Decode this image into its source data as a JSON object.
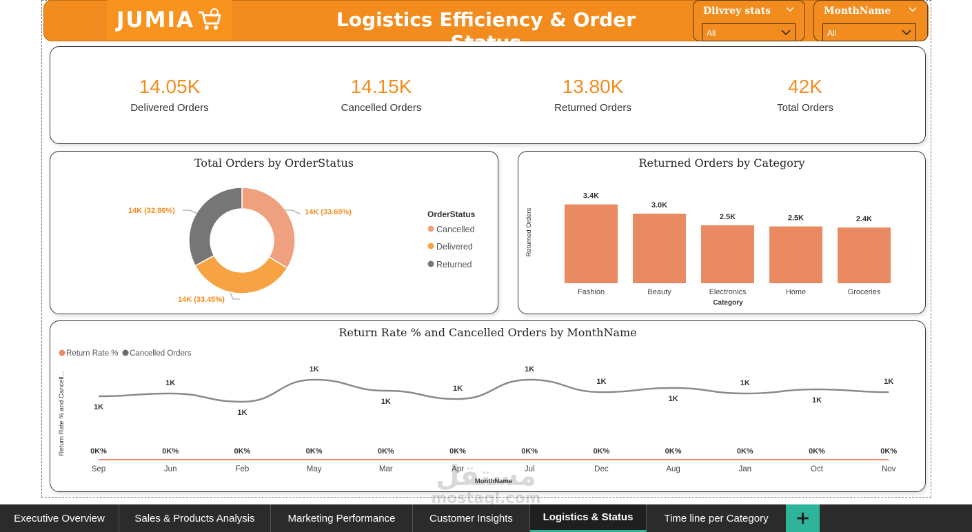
{
  "header": {
    "logo_text": "JUMIA",
    "title": "Logistics Efficiency & Order Status"
  },
  "slicers": [
    {
      "title": "Dlivrey stats",
      "value": "All"
    },
    {
      "title": "MonthName",
      "value": "All"
    }
  ],
  "kpis": [
    {
      "value": "14.05K",
      "label": "Delivered Orders"
    },
    {
      "value": "14.15K",
      "label": "Cancelled Orders"
    },
    {
      "value": "13.80K",
      "label": "Returned Orders"
    },
    {
      "value": "42K",
      "label": "Total Orders"
    }
  ],
  "colors": {
    "brand": "#f28c1e",
    "cancelled": "#efa07e",
    "delivered": "#f7a343",
    "returned": "#767676",
    "bar": "#ea8a62",
    "line_gray": "#8a8a8a",
    "line_orange": "#ea8a62",
    "tab_accent": "#2db49a"
  },
  "donut": {
    "title": "Total Orders by OrderStatus",
    "legend_title": "OrderStatus",
    "labels": {
      "cancelled": "14K (33.69%)",
      "delivered": "14K (33.45%)",
      "returned": "14K (32.86%)"
    }
  },
  "bar_chart": {
    "title": "Returned Orders by Category",
    "xlabel": "Category",
    "ylabel": "Returned Orders"
  },
  "line_chart": {
    "title": "Return Rate % and Cancelled Orders by MonthName",
    "xlabel": "MonthName",
    "ylabel": "Return Rate % and Cancell...",
    "legend": [
      "Return Rate %",
      "Cancelled Orders"
    ]
  },
  "chart_data": [
    {
      "type": "pie",
      "title": "Total Orders by OrderStatus",
      "categories": [
        "Cancelled",
        "Delivered",
        "Returned"
      ],
      "values": [
        33.69,
        33.45,
        32.86
      ],
      "data_labels": [
        "14K (33.69%)",
        "14K (33.45%)",
        "14K (32.86%)"
      ],
      "legend_title": "OrderStatus"
    },
    {
      "type": "bar",
      "title": "Returned Orders by Category",
      "categories": [
        "Fashion",
        "Beauty",
        "Electronics",
        "Home",
        "Groceries"
      ],
      "values": [
        3400,
        3000,
        2500,
        2450,
        2400
      ],
      "data_labels": [
        "3.4K",
        "3.0K",
        "2.5K",
        "2.5K",
        "2.4K"
      ],
      "xlabel": "Category",
      "ylabel": "Returned Orders",
      "ylim": [
        0,
        4000
      ]
    },
    {
      "type": "line",
      "title": "Return Rate % and Cancelled Orders by MonthName",
      "categories": [
        "Sep",
        "Jun",
        "Feb",
        "May",
        "Mar",
        "Apr",
        "Jul",
        "Dec",
        "Aug",
        "Jan",
        "Oct",
        "Nov"
      ],
      "series": [
        {
          "name": "Cancelled Orders",
          "values": [
            1150,
            1160,
            1130,
            1210,
            1170,
            1140,
            1210,
            1165,
            1180,
            1160,
            1175,
            1165
          ],
          "data_labels": [
            "1K",
            "1K",
            "1K",
            "1K",
            "1K",
            "1K",
            "1K",
            "1K",
            "1K",
            "1K",
            "1K",
            "1K"
          ]
        },
        {
          "name": "Return Rate %",
          "values": [
            0,
            0,
            0,
            0,
            0,
            0,
            0,
            0,
            0,
            0,
            0,
            0
          ],
          "data_labels": [
            "0K%",
            "0K%",
            "0K%",
            "0K%",
            "0K%",
            "0K%",
            "0K%",
            "0K%",
            "0K%",
            "0K%",
            "0K%",
            "0K%"
          ]
        }
      ],
      "xlabel": "MonthName",
      "ylabel": "Return Rate % and Cancell...",
      "legend": [
        "Return Rate %",
        "Cancelled Orders"
      ]
    }
  ],
  "watermark": {
    "line1": "مستقل",
    "line2": "mostaql.com"
  },
  "tabs": [
    {
      "label": "Executive Overview",
      "active": false
    },
    {
      "label": "Sales & Products Analysis",
      "active": false
    },
    {
      "label": "Marketing Performance",
      "active": false
    },
    {
      "label": "Customer Insights",
      "active": false
    },
    {
      "label": "Logistics & Status",
      "active": true
    },
    {
      "label": "Time line per Category",
      "active": false
    }
  ],
  "add_tab": "+"
}
